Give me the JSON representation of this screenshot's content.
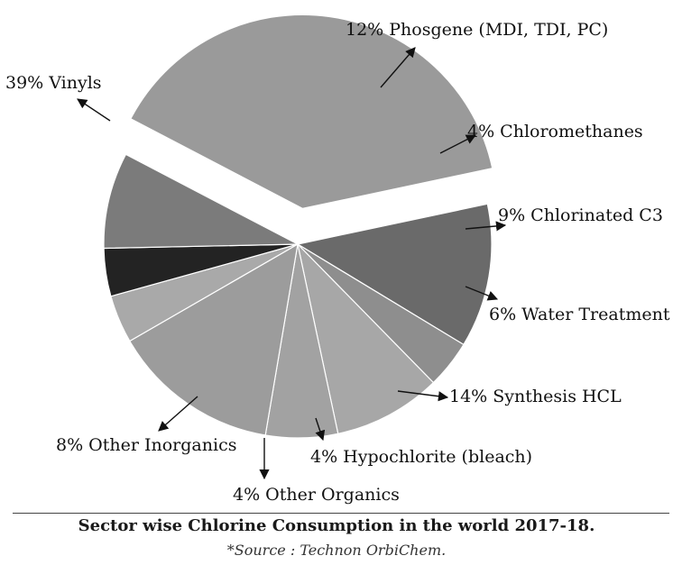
{
  "chart_data": {
    "type": "pie",
    "title": "Sector wise Chlorine Consumption in the world 2017-18.",
    "source": "*Source : Technon OrbiChem.",
    "slices": [
      {
        "name": "Phosgene (MDI, TDI, PC)",
        "value": 12,
        "label": "12% Phosgene (MDI, TDI, PC)",
        "color": "#6a6a6a"
      },
      {
        "name": "Chloromethanes",
        "value": 4,
        "label": "4% Chloromethanes",
        "color": "#8e8e8e"
      },
      {
        "name": "Chlorinated C3",
        "value": 9,
        "label": "9% Chlorinated C3",
        "color": "#a7a7a7"
      },
      {
        "name": "Water Treatment",
        "value": 6,
        "label": "6% Water Treatment",
        "color": "#a2a2a2"
      },
      {
        "name": "Synthesis HCL",
        "value": 14,
        "label": "14% Synthesis HCL",
        "color": "#9c9c9c"
      },
      {
        "name": "Hypochlorite (bleach)",
        "value": 4,
        "label": "4% Hypochlorite (bleach)",
        "color": "#a9a9a9"
      },
      {
        "name": "Other Organics",
        "value": 4,
        "label": "4% Other Organics",
        "color": "#232323"
      },
      {
        "name": "Other Inorganics",
        "value": 8,
        "label": "8% Other Inorganics",
        "color": "#7b7b7b"
      },
      {
        "name": "Vinyls",
        "value": 39,
        "label": "39% Vinyls",
        "color": "#9a9a9a",
        "exploded": true
      }
    ]
  }
}
